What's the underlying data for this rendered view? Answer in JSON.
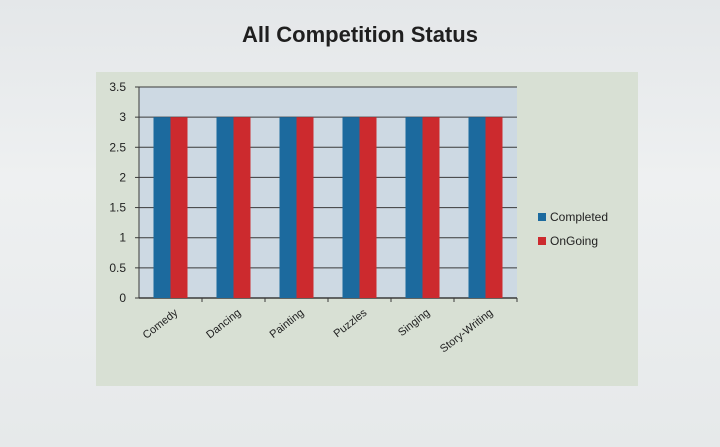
{
  "chart_data": {
    "type": "bar",
    "title": "All Competition Status",
    "xlabel": "",
    "ylabel": "",
    "categories": [
      "Comedy",
      "Dancing",
      "Painting",
      "Puzzles",
      "Singing",
      "Story-Writing"
    ],
    "series": [
      {
        "name": "Completed",
        "color": "#1c6a9e",
        "values": [
          3,
          3,
          3,
          3,
          3,
          3
        ]
      },
      {
        "name": "OnGoing",
        "color": "#cc2a2e",
        "values": [
          3,
          3,
          3,
          3,
          3,
          3
        ]
      }
    ],
    "ylim": [
      0,
      3.5
    ],
    "yticks": [
      "0",
      "0.5",
      "1",
      "1.5",
      "2",
      "2.5",
      "3",
      "3.5"
    ],
    "grid": true,
    "legend_position": "right"
  }
}
